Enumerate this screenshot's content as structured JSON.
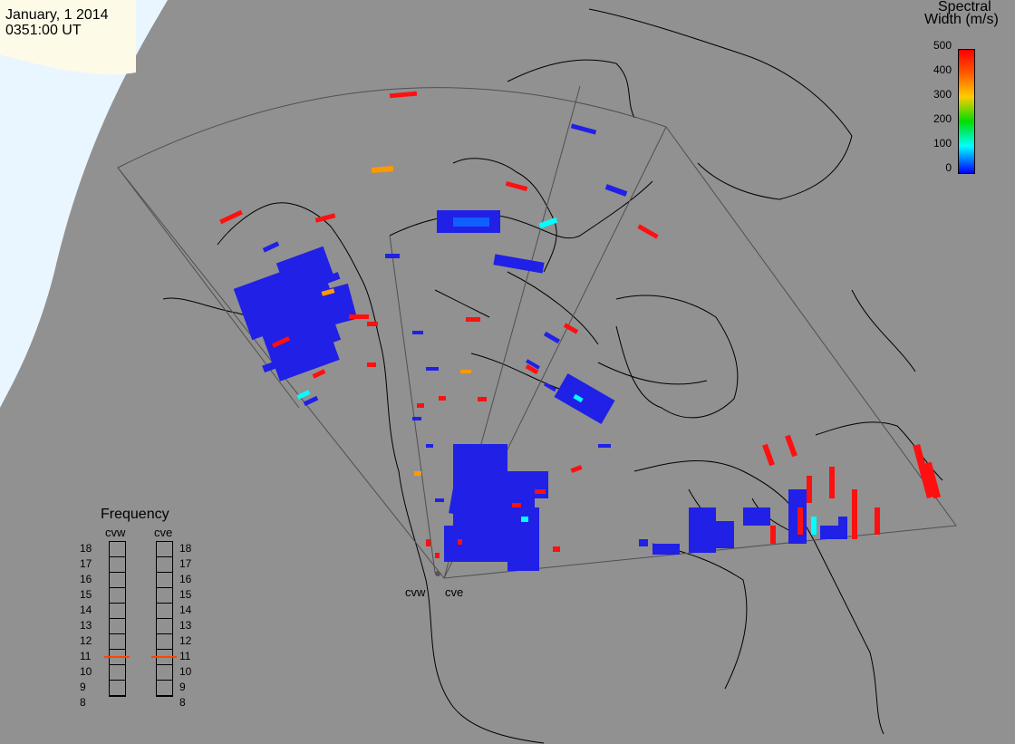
{
  "header": {
    "date": "January, 1 2014",
    "time": "0351:00 UT"
  },
  "colorbar": {
    "title_line1": "Spectral",
    "title_line2": "Width (m/s)",
    "ticks": [
      "500",
      "400",
      "300",
      "200",
      "100",
      "0"
    ],
    "stops": [
      "#ff0000",
      "#ff9900",
      "#ffcc00",
      "#00dd00",
      "#00ffff",
      "#0000ff"
    ]
  },
  "radars": {
    "west_name": "cvw",
    "east_name": "cve"
  },
  "frequency_panel": {
    "title": "Frequency",
    "col_left": "cvw",
    "col_right": "cve",
    "scale": [
      "18",
      "17",
      "16",
      "15",
      "14",
      "13",
      "12",
      "11",
      "10",
      "9",
      "8"
    ],
    "cvw_value_mhz": 11,
    "cve_value_mhz": 11
  },
  "colors": {
    "background_land": "#919191",
    "dayside": "#fdfbe8",
    "ocean_light": "#eaf6ff",
    "strong_blue": "#2020e6",
    "strong_red": "#ff1010",
    "orange": "#ff9900",
    "cyan": "#00ffff"
  }
}
